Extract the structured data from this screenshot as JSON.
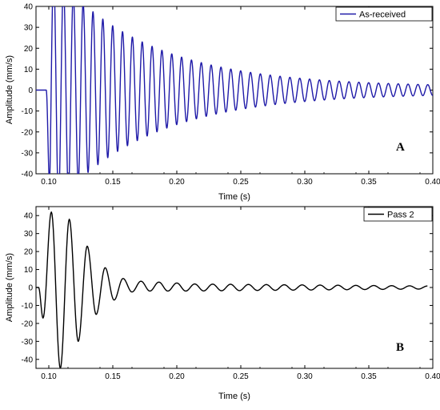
{
  "chart_data": [
    {
      "type": "line",
      "panel_label": "A",
      "xlabel": "Time (s)",
      "ylabel": "Amplitude (mm/s)",
      "xlim": [
        0.09,
        0.4
      ],
      "ylim": [
        -40,
        40
      ],
      "xticks": [
        0.1,
        0.15,
        0.2,
        0.25,
        0.3,
        0.35,
        0.4
      ],
      "xtick_labels": [
        "0.10",
        "0.15",
        "0.20",
        "0.25",
        "0.30",
        "0.35",
        "0.40"
      ],
      "yticks": [
        -40,
        -30,
        -20,
        -10,
        0,
        10,
        20,
        30,
        40
      ],
      "ytick_labels": [
        "-40",
        "-30",
        "-20",
        "-10",
        "0",
        "10",
        "20",
        "30",
        "40"
      ],
      "legend_position": "top-right",
      "series": [
        {
          "name": "As-received",
          "color": "#1f1aa8",
          "signal": {
            "onset_s": 0.098,
            "frequency_hz": 130,
            "peak_amplitude": 60,
            "decay_time_s": 0.075,
            "sustained_amplitude": 1.5,
            "end_s": 0.4
          }
        }
      ]
    },
    {
      "type": "line",
      "panel_label": "B",
      "xlabel": "Time (s)",
      "ylabel": "Amplitude (mm/s)",
      "xlim": [
        0.09,
        0.4
      ],
      "ylim": [
        -45,
        45
      ],
      "xticks": [
        0.1,
        0.15,
        0.2,
        0.25,
        0.3,
        0.35,
        0.4
      ],
      "xtick_labels": [
        "0.10",
        "0.15",
        "0.20",
        "0.25",
        "0.30",
        "0.35",
        "0.40"
      ],
      "yticks": [
        -40,
        -30,
        -20,
        -10,
        0,
        10,
        20,
        30,
        40
      ],
      "ytick_labels": [
        "-40",
        "-30",
        "-20",
        "-10",
        "0",
        "10",
        "20",
        "30",
        "40"
      ],
      "legend_position": "top-right",
      "series": [
        {
          "name": "Pass 2",
          "color": "#000000",
          "peaks": [
            [
              0.0955,
              -17
            ],
            [
              0.102,
              42
            ],
            [
              0.109,
              -45
            ],
            [
              0.116,
              38
            ],
            [
              0.123,
              -30
            ],
            [
              0.13,
              23
            ],
            [
              0.137,
              -15
            ],
            [
              0.144,
              11
            ],
            [
              0.151,
              -7
            ],
            [
              0.158,
              5
            ],
            [
              0.165,
              -2.5
            ],
            [
              0.172,
              3.5
            ],
            [
              0.179,
              -2
            ],
            [
              0.186,
              3
            ],
            [
              0.193,
              -2
            ],
            [
              0.2,
              2.5
            ]
          ],
          "tail": {
            "frequency_hz": 71.5,
            "amplitude": 2.0,
            "end_amplitude": 0.8,
            "end_s": 0.4
          }
        }
      ]
    }
  ]
}
